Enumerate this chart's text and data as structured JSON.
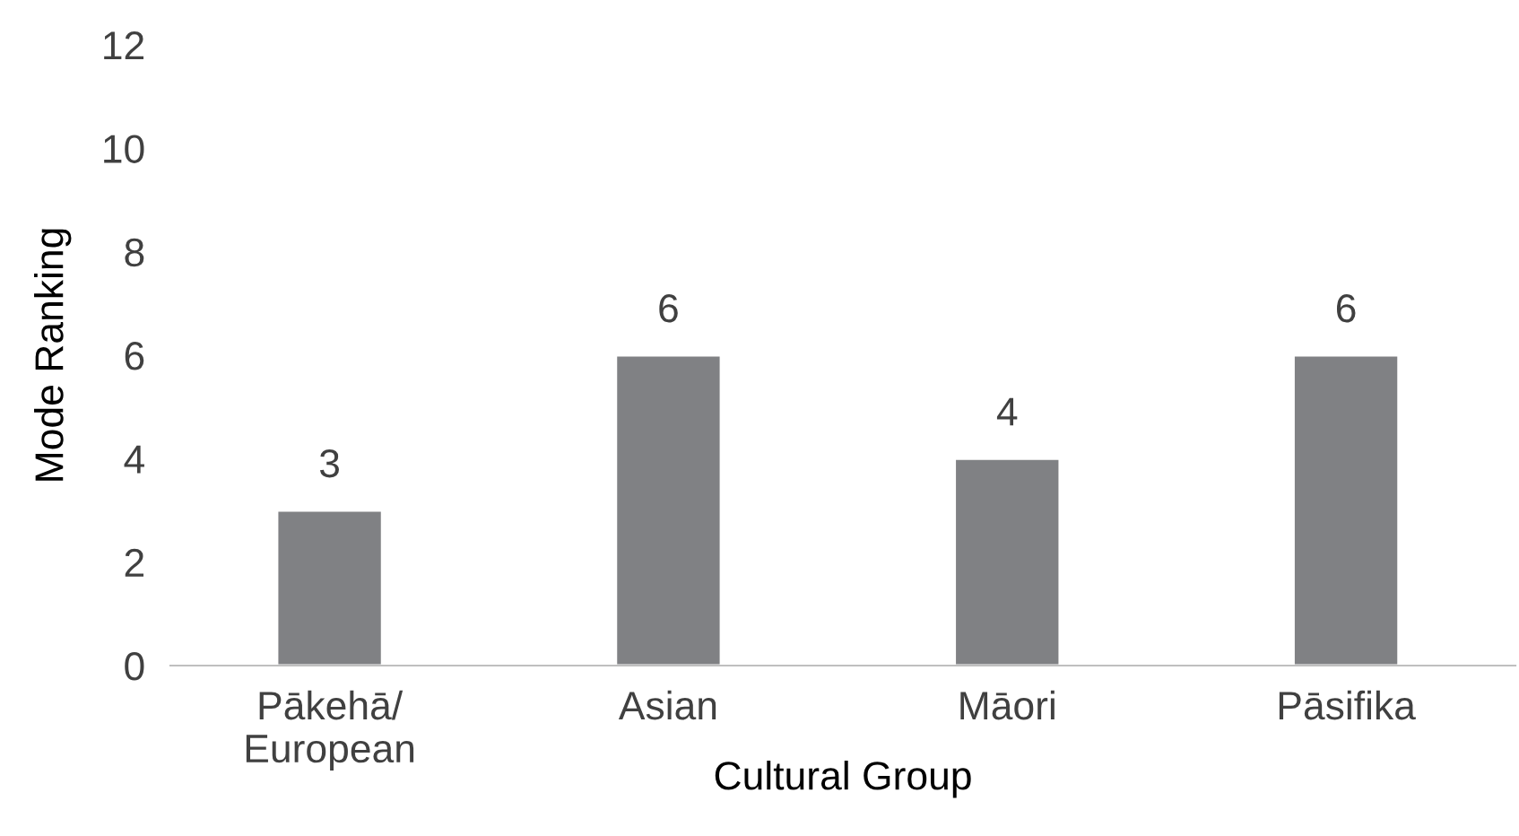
{
  "chart_data": {
    "type": "bar",
    "xlabel": "Cultural Group",
    "ylabel": "Mode Ranking",
    "categories": [
      "Pākehā/\nEuropean",
      "Asian",
      "Māori",
      "Pāsifika"
    ],
    "values": [
      3,
      6,
      4,
      6
    ],
    "color": "#808184",
    "ylim": [
      0,
      12
    ],
    "yticks": [
      0,
      2,
      4,
      6,
      8,
      10,
      12
    ],
    "grid": false,
    "data_labels": true
  }
}
